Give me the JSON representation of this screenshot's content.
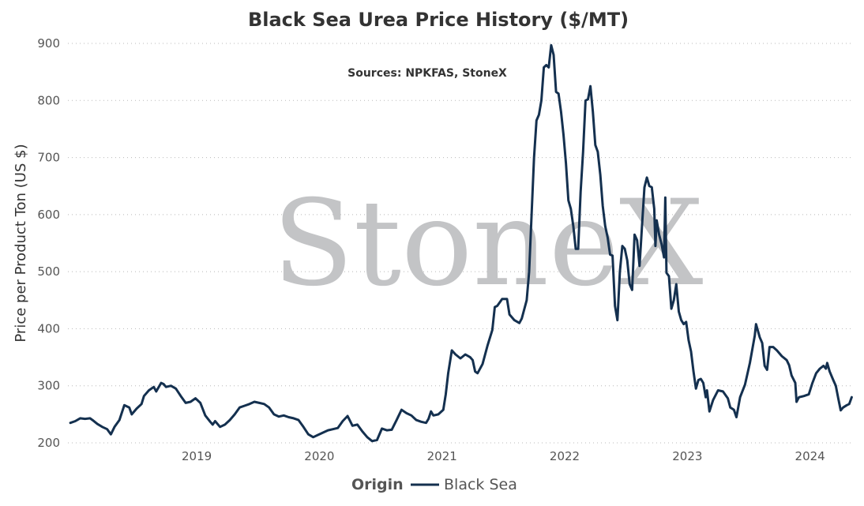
{
  "chart_data": {
    "type": "line",
    "title": "Black Sea Urea Price History ($/MT)",
    "subtitle": "Sources: NPKFAS, StoneX",
    "watermark": "StoneX",
    "watermark_mark": "®",
    "ylabel": "Price per Product Ton (US $)",
    "xlabel": "",
    "ylim": [
      200,
      900
    ],
    "yticks": [
      200,
      300,
      400,
      500,
      600,
      700,
      800,
      900
    ],
    "xlim": [
      2018.0,
      2024.4
    ],
    "xticks": [
      {
        "value": 2019.05,
        "label": "2019"
      },
      {
        "value": 2020.05,
        "label": "2020"
      },
      {
        "value": 2021.05,
        "label": "2021"
      },
      {
        "value": 2022.05,
        "label": "2022"
      },
      {
        "value": 2023.05,
        "label": "2023"
      },
      {
        "value": 2024.05,
        "label": "2024"
      }
    ],
    "grid": true,
    "legend": {
      "title": "Origin",
      "placement": "bottom"
    },
    "series": [
      {
        "name": "Black Sea",
        "color": "#14304f",
        "points": [
          [
            2018.02,
            235
          ],
          [
            2018.06,
            238
          ],
          [
            2018.1,
            243
          ],
          [
            2018.14,
            242
          ],
          [
            2018.18,
            243
          ],
          [
            2018.2,
            240
          ],
          [
            2018.24,
            233
          ],
          [
            2018.28,
            228
          ],
          [
            2018.32,
            224
          ],
          [
            2018.35,
            215
          ],
          [
            2018.38,
            228
          ],
          [
            2018.42,
            240
          ],
          [
            2018.46,
            266
          ],
          [
            2018.5,
            262
          ],
          [
            2018.52,
            250
          ],
          [
            2018.56,
            260
          ],
          [
            2018.6,
            268
          ],
          [
            2018.62,
            282
          ],
          [
            2018.66,
            292
          ],
          [
            2018.7,
            298
          ],
          [
            2018.72,
            290
          ],
          [
            2018.76,
            305
          ],
          [
            2018.78,
            303
          ],
          [
            2018.8,
            298
          ],
          [
            2018.84,
            300
          ],
          [
            2018.88,
            295
          ],
          [
            2018.92,
            282
          ],
          [
            2018.96,
            270
          ],
          [
            2019.0,
            272
          ],
          [
            2019.04,
            278
          ],
          [
            2019.08,
            270
          ],
          [
            2019.12,
            248
          ],
          [
            2019.16,
            237
          ],
          [
            2019.18,
            232
          ],
          [
            2019.2,
            238
          ],
          [
            2019.24,
            228
          ],
          [
            2019.28,
            232
          ],
          [
            2019.32,
            240
          ],
          [
            2019.36,
            250
          ],
          [
            2019.4,
            262
          ],
          [
            2019.44,
            265
          ],
          [
            2019.48,
            268
          ],
          [
            2019.52,
            272
          ],
          [
            2019.56,
            270
          ],
          [
            2019.6,
            268
          ],
          [
            2019.64,
            262
          ],
          [
            2019.68,
            250
          ],
          [
            2019.72,
            246
          ],
          [
            2019.76,
            248
          ],
          [
            2019.8,
            245
          ],
          [
            2019.84,
            243
          ],
          [
            2019.88,
            240
          ],
          [
            2019.92,
            228
          ],
          [
            2019.96,
            215
          ],
          [
            2020.0,
            210
          ],
          [
            2020.04,
            214
          ],
          [
            2020.08,
            218
          ],
          [
            2020.12,
            222
          ],
          [
            2020.16,
            224
          ],
          [
            2020.2,
            226
          ],
          [
            2020.24,
            238
          ],
          [
            2020.28,
            247
          ],
          [
            2020.32,
            230
          ],
          [
            2020.36,
            232
          ],
          [
            2020.4,
            220
          ],
          [
            2020.44,
            210
          ],
          [
            2020.48,
            203
          ],
          [
            2020.52,
            205
          ],
          [
            2020.56,
            225
          ],
          [
            2020.6,
            222
          ],
          [
            2020.64,
            223
          ],
          [
            2020.68,
            240
          ],
          [
            2020.72,
            258
          ],
          [
            2020.76,
            252
          ],
          [
            2020.8,
            248
          ],
          [
            2020.84,
            240
          ],
          [
            2020.88,
            237
          ],
          [
            2020.92,
            235
          ],
          [
            2020.94,
            242
          ],
          [
            2020.96,
            255
          ],
          [
            2020.98,
            248
          ],
          [
            2021.02,
            250
          ],
          [
            2021.06,
            258
          ],
          [
            2021.08,
            285
          ],
          [
            2021.1,
            322
          ],
          [
            2021.13,
            362
          ],
          [
            2021.16,
            355
          ],
          [
            2021.2,
            348
          ],
          [
            2021.24,
            355
          ],
          [
            2021.28,
            350
          ],
          [
            2021.3,
            345
          ],
          [
            2021.32,
            325
          ],
          [
            2021.34,
            322
          ],
          [
            2021.38,
            338
          ],
          [
            2021.42,
            370
          ],
          [
            2021.46,
            398
          ],
          [
            2021.48,
            438
          ],
          [
            2021.5,
            440
          ],
          [
            2021.54,
            452
          ],
          [
            2021.58,
            452
          ],
          [
            2021.6,
            425
          ],
          [
            2021.64,
            415
          ],
          [
            2021.68,
            410
          ],
          [
            2021.7,
            418
          ],
          [
            2021.74,
            450
          ],
          [
            2021.76,
            500
          ],
          [
            2021.78,
            600
          ],
          [
            2021.8,
            700
          ],
          [
            2021.82,
            765
          ],
          [
            2021.84,
            775
          ],
          [
            2021.86,
            800
          ],
          [
            2021.88,
            858
          ],
          [
            2021.9,
            862
          ],
          [
            2021.92,
            858
          ],
          [
            2021.94,
            897
          ],
          [
            2021.96,
            880
          ],
          [
            2021.98,
            815
          ],
          [
            2022.0,
            812
          ],
          [
            2022.02,
            780
          ],
          [
            2022.04,
            740
          ],
          [
            2022.06,
            690
          ],
          [
            2022.08,
            625
          ],
          [
            2022.1,
            610
          ],
          [
            2022.12,
            580
          ],
          [
            2022.14,
            540
          ],
          [
            2022.16,
            540
          ],
          [
            2022.18,
            640
          ],
          [
            2022.2,
            710
          ],
          [
            2022.22,
            800
          ],
          [
            2022.24,
            802
          ],
          [
            2022.26,
            825
          ],
          [
            2022.28,
            780
          ],
          [
            2022.3,
            722
          ],
          [
            2022.32,
            710
          ],
          [
            2022.34,
            670
          ],
          [
            2022.36,
            615
          ],
          [
            2022.38,
            580
          ],
          [
            2022.4,
            560
          ],
          [
            2022.42,
            530
          ],
          [
            2022.44,
            528
          ],
          [
            2022.46,
            440
          ],
          [
            2022.48,
            415
          ],
          [
            2022.5,
            500
          ],
          [
            2022.52,
            545
          ],
          [
            2022.54,
            540
          ],
          [
            2022.56,
            520
          ],
          [
            2022.58,
            478
          ],
          [
            2022.6,
            468
          ],
          [
            2022.62,
            565
          ],
          [
            2022.64,
            555
          ],
          [
            2022.66,
            510
          ],
          [
            2022.68,
            580
          ],
          [
            2022.7,
            648
          ],
          [
            2022.72,
            665
          ],
          [
            2022.74,
            650
          ],
          [
            2022.76,
            648
          ],
          [
            2022.78,
            610
          ],
          [
            2022.79,
            545
          ],
          [
            2022.8,
            590
          ],
          [
            2022.82,
            565
          ],
          [
            2022.84,
            548
          ],
          [
            2022.86,
            525
          ],
          [
            2022.87,
            630
          ],
          [
            2022.88,
            498
          ],
          [
            2022.9,
            492
          ],
          [
            2022.92,
            435
          ],
          [
            2022.94,
            450
          ],
          [
            2022.96,
            478
          ],
          [
            2022.98,
            430
          ],
          [
            2023.0,
            415
          ],
          [
            2023.02,
            408
          ],
          [
            2023.04,
            412
          ],
          [
            2023.06,
            380
          ],
          [
            2023.08,
            360
          ],
          [
            2023.1,
            325
          ],
          [
            2023.12,
            295
          ],
          [
            2023.14,
            310
          ],
          [
            2023.16,
            312
          ],
          [
            2023.18,
            305
          ],
          [
            2023.2,
            280
          ],
          [
            2023.21,
            292
          ],
          [
            2023.23,
            255
          ],
          [
            2023.26,
            275
          ],
          [
            2023.3,
            292
          ],
          [
            2023.34,
            290
          ],
          [
            2023.38,
            278
          ],
          [
            2023.4,
            262
          ],
          [
            2023.43,
            258
          ],
          [
            2023.45,
            245
          ],
          [
            2023.48,
            280
          ],
          [
            2023.52,
            302
          ],
          [
            2023.56,
            340
          ],
          [
            2023.6,
            388
          ],
          [
            2023.61,
            408
          ],
          [
            2023.64,
            385
          ],
          [
            2023.66,
            375
          ],
          [
            2023.68,
            335
          ],
          [
            2023.7,
            328
          ],
          [
            2023.72,
            368
          ],
          [
            2023.75,
            368
          ],
          [
            2023.78,
            362
          ],
          [
            2023.82,
            352
          ],
          [
            2023.86,
            345
          ],
          [
            2023.88,
            336
          ],
          [
            2023.9,
            318
          ],
          [
            2023.93,
            305
          ],
          [
            2023.94,
            272
          ],
          [
            2023.96,
            280
          ],
          [
            2024.0,
            282
          ],
          [
            2024.04,
            285
          ],
          [
            2024.07,
            305
          ],
          [
            2024.1,
            322
          ],
          [
            2024.13,
            330
          ],
          [
            2024.16,
            335
          ],
          [
            2024.18,
            330
          ],
          [
            2024.19,
            340
          ],
          [
            2024.21,
            325
          ],
          [
            2024.24,
            310
          ],
          [
            2024.26,
            300
          ],
          [
            2024.28,
            278
          ],
          [
            2024.3,
            257
          ],
          [
            2024.32,
            262
          ],
          [
            2024.35,
            266
          ],
          [
            2024.37,
            268
          ],
          [
            2024.39,
            280
          ]
        ]
      }
    ]
  }
}
